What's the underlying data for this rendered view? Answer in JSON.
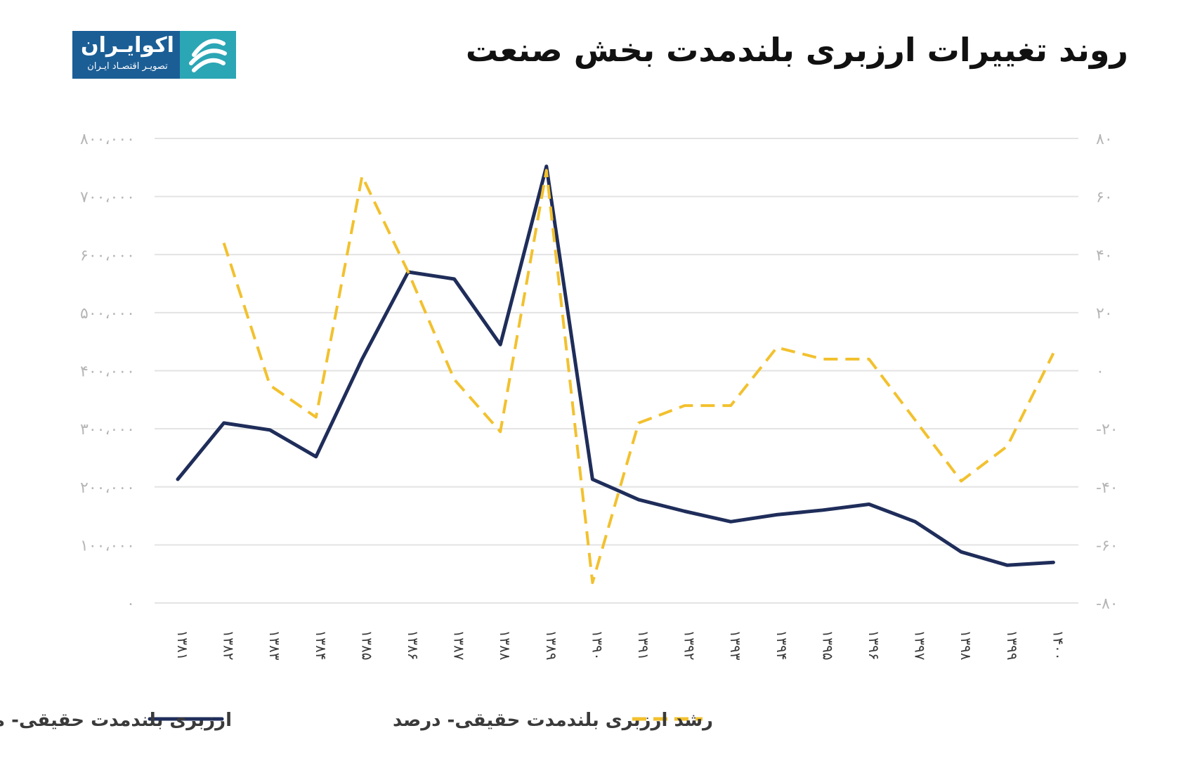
{
  "title": "روند تغییرات ارزبری بلندمدت بخش صنعت",
  "logo": {
    "name": "اکوایـران",
    "tagline": "تصویـر اقتصـاد ایـران"
  },
  "colors": {
    "series_solid": "#1f2d5a",
    "series_dashed": "#f2c12e",
    "grid": "#e3e3e3",
    "logo_blue": "#1b5e96",
    "logo_teal": "#2ba6b5"
  },
  "chart_data": {
    "type": "line",
    "categories": [
      "۱۳۸۱",
      "۱۳۸۲",
      "۱۳۸۳",
      "۱۳۸۴",
      "۱۳۸۵",
      "۱۳۸۶",
      "۱۳۸۷",
      "۱۳۸۸",
      "۱۳۸۹",
      "۱۳۹۰",
      "۱۳۹۱",
      "۱۳۹۲",
      "۱۳۹۳",
      "۱۳۹۴",
      "۱۳۹۵",
      "۱۳۹۶",
      "۱۳۹۷",
      "۱۳۹۸",
      "۱۳۹۹",
      "۱۴۰۰"
    ],
    "left_axis": {
      "ylim": [
        0,
        800000
      ],
      "ticks": [
        0,
        100000,
        200000,
        300000,
        400000,
        500000,
        600000,
        700000,
        800000
      ],
      "tick_labels": [
        "۰",
        "۱۰۰،۰۰۰",
        "۲۰۰،۰۰۰",
        "۳۰۰،۰۰۰",
        "۴۰۰،۰۰۰",
        "۵۰۰،۰۰۰",
        "۶۰۰،۰۰۰",
        "۷۰۰،۰۰۰",
        "۸۰۰،۰۰۰"
      ]
    },
    "right_axis": {
      "ylim": [
        -80,
        80
      ],
      "ticks": [
        -80,
        -60,
        -40,
        -20,
        0,
        20,
        40,
        60,
        80
      ],
      "tick_labels": [
        "-۸۰",
        "-۶۰",
        "-۴۰",
        "-۲۰",
        "۰",
        "۲۰",
        "۴۰",
        "۶۰",
        "۸۰"
      ]
    },
    "grid": true,
    "legend_position": "bottom",
    "series": [
      {
        "name": "ارزبری بلندمدت حقیقی- میلیارد ریال",
        "axis": "left",
        "style": "solid",
        "values": [
          213000,
          310000,
          298000,
          252000,
          420000,
          570000,
          558000,
          445000,
          752000,
          213000,
          178000,
          158000,
          140000,
          152000,
          160000,
          170000,
          140000,
          88000,
          65000,
          70000
        ]
      },
      {
        "name": "رشد ارزبری بلندمدت حقیقی- درصد",
        "axis": "right",
        "style": "dashed",
        "values": [
          null,
          44,
          -5,
          -16,
          67,
          34,
          -3,
          -21,
          69,
          -73,
          -18,
          -12,
          -12,
          8,
          4,
          4,
          -17,
          -38,
          -26,
          6
        ]
      }
    ]
  }
}
